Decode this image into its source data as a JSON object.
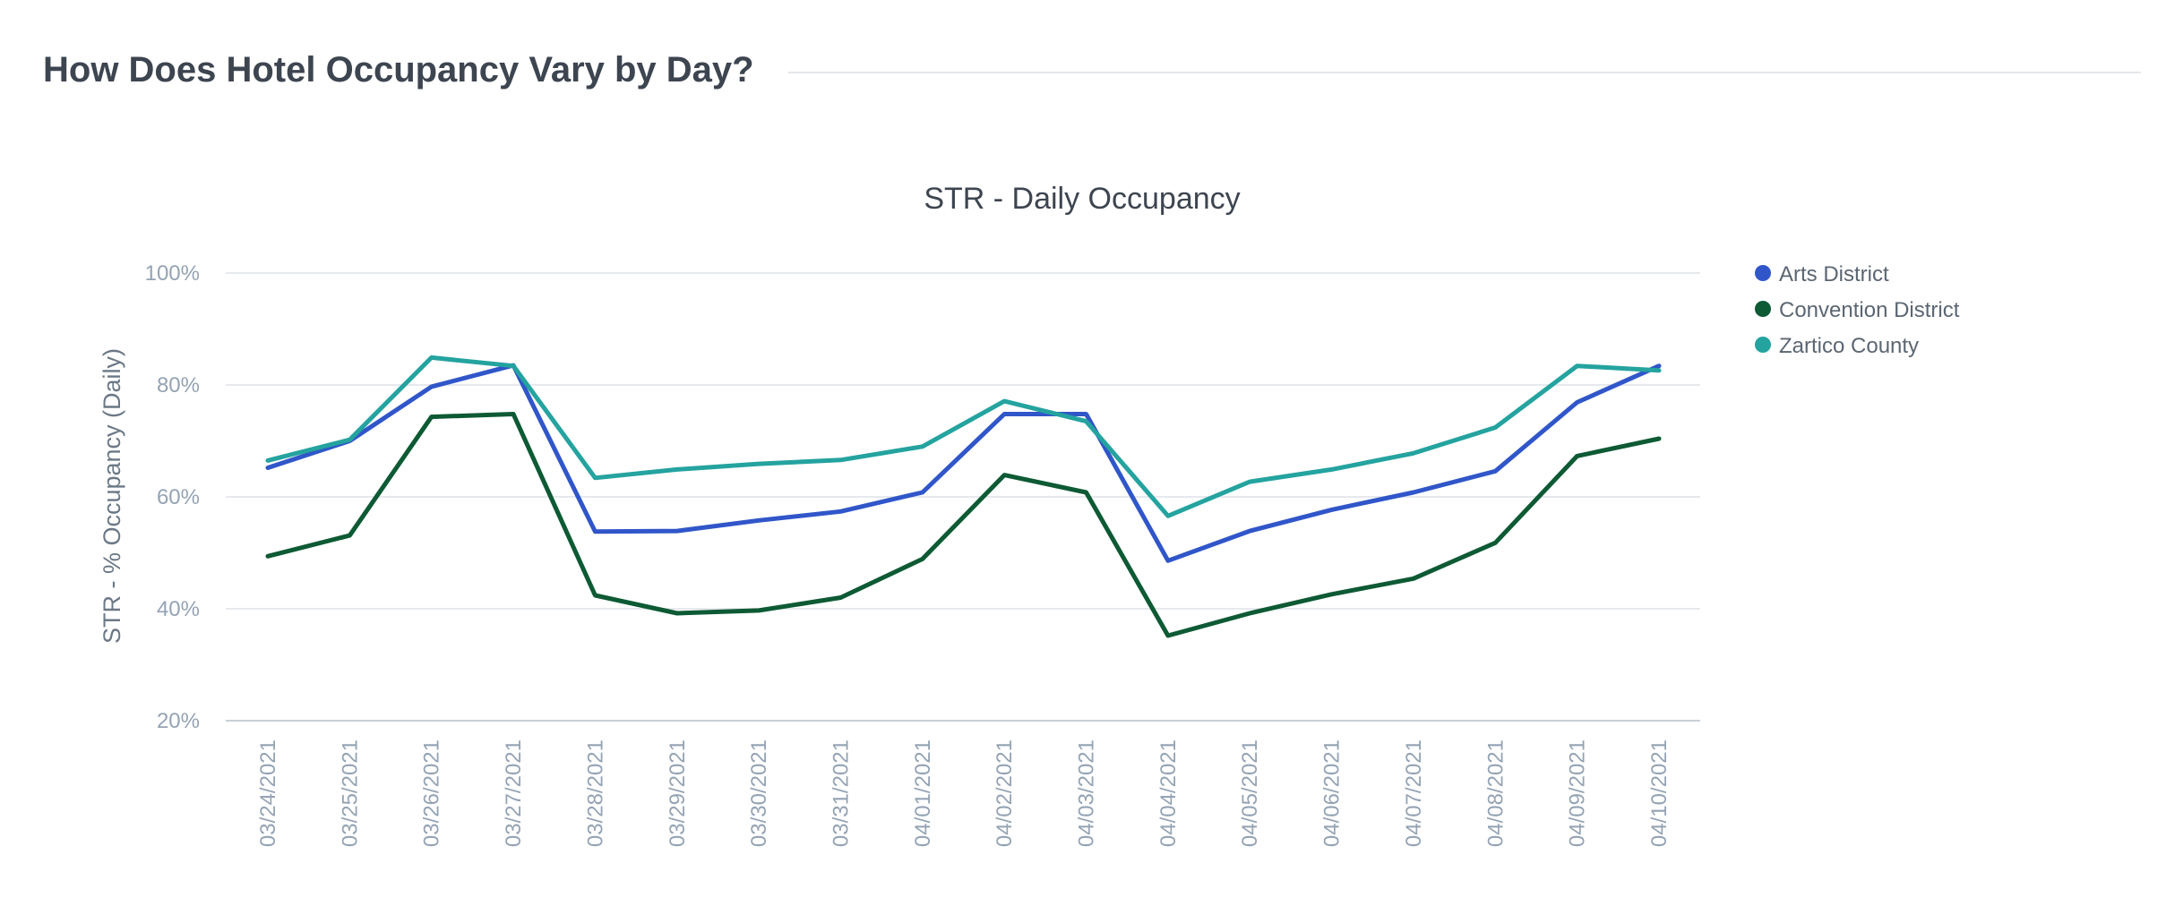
{
  "page": {
    "title": "How Does Hotel Occupancy Vary by Day?"
  },
  "chart_data": {
    "type": "line",
    "title": "STR - Daily Occupancy",
    "xlabel": "",
    "ylabel": "STR - % Occupancy (Daily)",
    "ylim": [
      20,
      100
    ],
    "y_ticks": [
      20,
      40,
      60,
      80,
      100
    ],
    "y_tick_labels": [
      "20%",
      "40%",
      "60%",
      "80%",
      "100%"
    ],
    "grid": true,
    "legend_position": "right",
    "categories": [
      "03/24/2021",
      "03/25/2021",
      "03/26/2021",
      "03/27/2021",
      "03/28/2021",
      "03/29/2021",
      "03/30/2021",
      "03/31/2021",
      "04/01/2021",
      "04/02/2021",
      "04/03/2021",
      "04/04/2021",
      "04/05/2021",
      "04/06/2021",
      "04/07/2021",
      "04/08/2021",
      "04/09/2021",
      "04/10/2021"
    ],
    "series": [
      {
        "name": "Arts District",
        "color": "#3056c9",
        "values": [
          65.2,
          70.0,
          79.7,
          83.5,
          53.8,
          53.9,
          55.8,
          57.4,
          60.8,
          74.8,
          74.8,
          48.6,
          53.9,
          57.7,
          60.8,
          64.6,
          76.9,
          83.4
        ]
      },
      {
        "name": "Convention District",
        "color": "#0d5a34",
        "values": [
          49.4,
          53.1,
          74.3,
          74.8,
          42.4,
          39.2,
          39.7,
          42.0,
          48.9,
          63.9,
          60.8,
          35.2,
          39.2,
          42.6,
          45.4,
          51.8,
          67.3,
          70.4
        ]
      },
      {
        "name": "Zartico County",
        "color": "#24a39f",
        "values": [
          66.5,
          70.2,
          84.9,
          83.4,
          63.4,
          64.9,
          65.9,
          66.6,
          69.0,
          77.1,
          73.5,
          56.6,
          62.7,
          64.9,
          67.8,
          72.4,
          83.4,
          82.6
        ]
      }
    ]
  }
}
